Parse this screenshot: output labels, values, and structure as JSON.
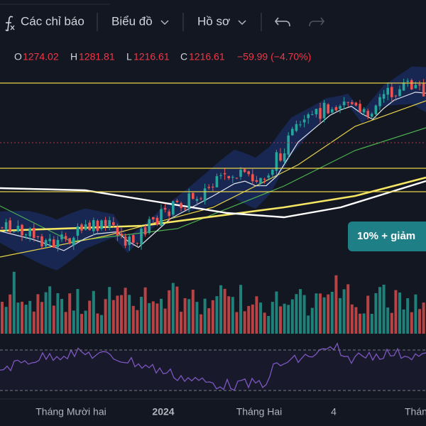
{
  "toolbar": {
    "indicators": "Các chỉ báo",
    "chart": "Biểu đồ",
    "profile": "Hồ sơ"
  },
  "ohlc": {
    "open": {
      "label": "O",
      "value": "1274.02"
    },
    "high": {
      "label": "H",
      "value": "1281.81"
    },
    "low": {
      "label": "L",
      "value": "1216.61"
    },
    "close": {
      "label": "C",
      "value": "1216.61"
    },
    "change": "−59.99 (−4.70%)"
  },
  "annotation": "10% + giảm",
  "x_axis": [
    "Tháng Mười hai",
    "2024",
    "Tháng Hai",
    "4",
    "Tháng"
  ]
}
